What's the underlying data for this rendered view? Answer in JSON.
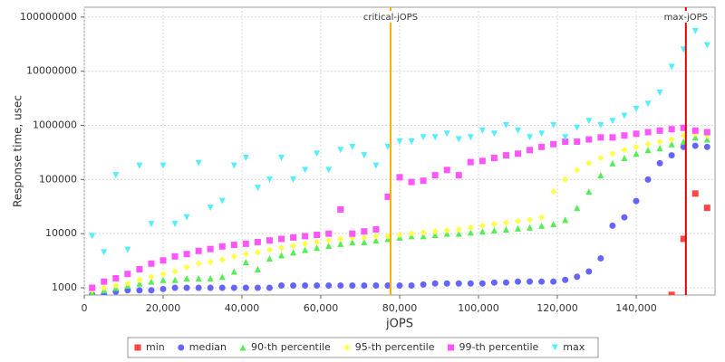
{
  "chart_data": {
    "type": "scatter",
    "x_label": "jOPS",
    "y_label": "Response time, usec",
    "log_y": true,
    "grid": true,
    "xlim": [
      0,
      160000
    ],
    "ylim": [
      735,
      152000000
    ],
    "xticks": [
      {
        "value": 0,
        "label": "0"
      },
      {
        "value": 20000,
        "label": "20,000"
      },
      {
        "value": 40000,
        "label": "40,000"
      },
      {
        "value": 60000,
        "label": "60,000"
      },
      {
        "value": 80000,
        "label": "80,000"
      },
      {
        "value": 100000,
        "label": "100,000"
      },
      {
        "value": 120000,
        "label": "120,000"
      },
      {
        "value": 140000,
        "label": "140,000"
      }
    ],
    "yticks": [
      1000,
      10000,
      100000,
      1000000,
      10000000,
      100000000
    ],
    "x": [
      2000,
      5000,
      8000,
      11000,
      14000,
      17000,
      20000,
      23000,
      26000,
      29000,
      32000,
      35000,
      38000,
      41000,
      44000,
      47000,
      50000,
      53000,
      56000,
      59000,
      62000,
      65000,
      68000,
      71000,
      74000,
      77000,
      80000,
      83000,
      86000,
      89000,
      92000,
      95000,
      98000,
      101000,
      104000,
      107000,
      110000,
      113000,
      116000,
      119000,
      122000,
      125000,
      128000,
      131000,
      134000,
      137000,
      140000,
      143000,
      146000,
      149000,
      152000,
      155000,
      158000
    ],
    "series": [
      {
        "name": "min",
        "color": "#ff4444",
        "marker": "square",
        "values": [
          null,
          null,
          null,
          null,
          null,
          null,
          null,
          null,
          null,
          null,
          null,
          null,
          null,
          null,
          null,
          null,
          null,
          null,
          null,
          null,
          null,
          null,
          null,
          null,
          null,
          null,
          null,
          null,
          null,
          null,
          null,
          null,
          null,
          null,
          null,
          null,
          null,
          null,
          null,
          null,
          null,
          null,
          null,
          null,
          null,
          null,
          null,
          null,
          null,
          740,
          8000,
          55000,
          30000
        ]
      },
      {
        "name": "median",
        "color": "#6464ff",
        "marker": "circle",
        "values": [
          750,
          780,
          850,
          900,
          900,
          900,
          950,
          1000,
          1000,
          1000,
          1000,
          1000,
          1000,
          1000,
          1000,
          1000,
          1100,
          1100,
          1100,
          1100,
          1100,
          1100,
          1100,
          1100,
          1100,
          1100,
          1100,
          1100,
          1150,
          1200,
          1200,
          1200,
          1200,
          1200,
          1250,
          1250,
          1300,
          1300,
          1300,
          1300,
          1400,
          1600,
          2000,
          3500,
          14000,
          20000,
          40000,
          100000,
          200000,
          280000,
          400000,
          420000,
          400000
        ]
      },
      {
        "name": "90-th percentile",
        "color": "#55ee55",
        "marker": "triangle",
        "values": [
          800,
          900,
          1000,
          1100,
          1200,
          1300,
          1400,
          1400,
          1500,
          1500,
          1500,
          1600,
          2000,
          3000,
          2200,
          3500,
          4000,
          4500,
          5000,
          5500,
          6000,
          6500,
          7000,
          7000,
          7500,
          8000,
          8500,
          9000,
          9000,
          9500,
          10000,
          10000,
          10500,
          11000,
          11500,
          12000,
          12500,
          13000,
          14000,
          15000,
          18000,
          30000,
          60000,
          120000,
          200000,
          250000,
          300000,
          350000,
          380000,
          450000,
          500000,
          600000,
          550000
        ]
      },
      {
        "name": "95-th percentile",
        "color": "#ffff44",
        "marker": "diamond",
        "values": [
          900,
          1000,
          1100,
          1200,
          1400,
          1600,
          1800,
          2000,
          2400,
          2800,
          3000,
          3300,
          3800,
          4200,
          4500,
          5000,
          5500,
          6000,
          6500,
          7000,
          7500,
          8000,
          8500,
          8500,
          9000,
          9000,
          9500,
          10000,
          10500,
          11000,
          11500,
          12000,
          13000,
          14000,
          15000,
          16000,
          17000,
          18000,
          20000,
          60000,
          100000,
          150000,
          200000,
          250000,
          300000,
          350000,
          400000,
          450000,
          500000,
          550000,
          650000,
          700000,
          650000
        ]
      },
      {
        "name": "99-th percentile",
        "color": "#ff55ff",
        "marker": "square",
        "values": [
          1000,
          1300,
          1500,
          1800,
          2200,
          2800,
          3200,
          3800,
          4200,
          4800,
          5200,
          5800,
          6200,
          6500,
          7000,
          7500,
          8000,
          8500,
          9000,
          9500,
          10000,
          28000,
          10000,
          11000,
          12000,
          48000,
          110000,
          90000,
          95000,
          120000,
          150000,
          120000,
          210000,
          220000,
          250000,
          280000,
          300000,
          350000,
          400000,
          450000,
          500000,
          500000,
          550000,
          600000,
          600000,
          650000,
          700000,
          750000,
          800000,
          850000,
          900000,
          800000,
          750000
        ]
      },
      {
        "name": "max",
        "color": "#55eeff",
        "marker": "triangle-down",
        "values": [
          9000,
          4500,
          120000,
          5000,
          180000,
          15000,
          180000,
          15000,
          20000,
          200000,
          30000,
          40000,
          180000,
          250000,
          70000,
          100000,
          250000,
          100000,
          150000,
          300000,
          150000,
          350000,
          400000,
          280000,
          180000,
          400000,
          500000,
          500000,
          600000,
          600000,
          700000,
          550000,
          600000,
          800000,
          700000,
          1000000,
          800000,
          600000,
          700000,
          1000000,
          600000,
          900000,
          1200000,
          1000000,
          1200000,
          1500000,
          2000000,
          2500000,
          4000000,
          12000000,
          25000000,
          55000000,
          30000000
        ]
      }
    ],
    "markers": [
      {
        "label": "critical-jOPS",
        "x": 77700,
        "color": "#ffb000"
      },
      {
        "label": "max-jOPS",
        "x": 152600,
        "color": "#e00000"
      }
    ]
  }
}
